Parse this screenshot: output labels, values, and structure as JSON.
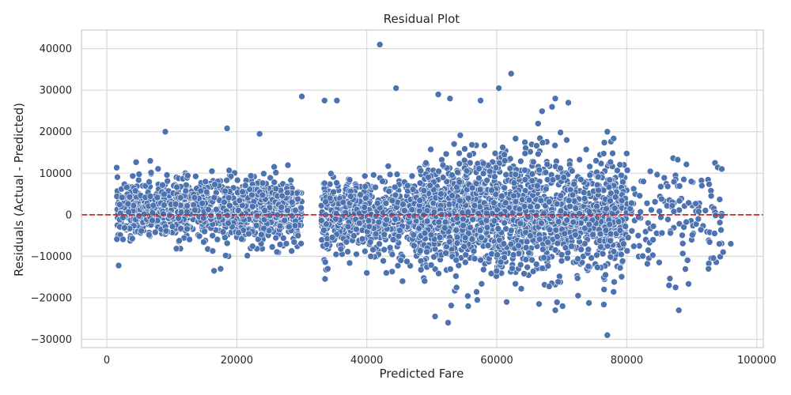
{
  "chart_data": {
    "type": "scatter",
    "title": "Residual Plot",
    "xlabel": "Predicted Fare",
    "ylabel": "Residuals (Actual - Predicted)",
    "xlim": [
      -3900,
      101000
    ],
    "ylim": [
      -32000,
      44500
    ],
    "x_ticks": [
      0,
      20000,
      40000,
      60000,
      80000,
      100000
    ],
    "y_ticks": [
      -30000,
      -20000,
      -10000,
      0,
      10000,
      20000,
      30000,
      40000
    ],
    "x_tick_labels": [
      "0",
      "20000",
      "40000",
      "60000",
      "80000",
      "100000"
    ],
    "y_tick_labels": [
      "−30000",
      "−20000",
      "−10000",
      "0",
      "10000",
      "20000",
      "30000",
      "40000"
    ],
    "grid": true,
    "reference_line": {
      "y": 0,
      "style": "dashed",
      "color": "#e41a1c"
    },
    "marker_color": "#4c72b0",
    "clusters": [
      {
        "x_range": [
          1500,
          30000
        ],
        "center_y": 1000,
        "spread_y": 3800,
        "count": 1100
      },
      {
        "x_range": [
          33000,
          50000
        ],
        "center_y": -500,
        "spread_y": 4500,
        "count": 700
      },
      {
        "x_range": [
          48000,
          80000
        ],
        "center_y": 0,
        "spread_y": 7000,
        "count": 1800
      },
      {
        "x_range": [
          80000,
          95000
        ],
        "center_y": 0,
        "spread_y": 6500,
        "count": 140
      }
    ],
    "notable_points": [
      {
        "x": 42000,
        "y": 41000
      },
      {
        "x": 44500,
        "y": 30500
      },
      {
        "x": 62200,
        "y": 34000
      },
      {
        "x": 60300,
        "y": 30500
      },
      {
        "x": 30000,
        "y": 28500
      },
      {
        "x": 33500,
        "y": 27500
      },
      {
        "x": 35400,
        "y": 27500
      },
      {
        "x": 51000,
        "y": 29000
      },
      {
        "x": 52800,
        "y": 28000
      },
      {
        "x": 57500,
        "y": 27500
      },
      {
        "x": 69000,
        "y": 28000
      },
      {
        "x": 71000,
        "y": 27000
      },
      {
        "x": 9000,
        "y": 20000
      },
      {
        "x": 18500,
        "y": 20800
      },
      {
        "x": 23500,
        "y": 19500
      },
      {
        "x": 77000,
        "y": 20000
      },
      {
        "x": 77000,
        "y": -29000
      },
      {
        "x": 52500,
        "y": -26000
      },
      {
        "x": 50500,
        "y": -24500
      },
      {
        "x": 88000,
        "y": -23000
      },
      {
        "x": 69000,
        "y": -23000
      },
      {
        "x": 57000,
        "y": -20500
      },
      {
        "x": 72500,
        "y": -19500
      },
      {
        "x": 66500,
        "y": -21500
      },
      {
        "x": 76500,
        "y": -18000
      },
      {
        "x": 16500,
        "y": -13500
      },
      {
        "x": 17500,
        "y": -13000
      },
      {
        "x": 86500,
        "y": -17000
      },
      {
        "x": 87500,
        "y": -17500
      },
      {
        "x": 96000,
        "y": -7000
      },
      {
        "x": 93500,
        "y": -4500
      },
      {
        "x": 91000,
        "y": -1000
      },
      {
        "x": 40000,
        "y": -14000
      },
      {
        "x": 43000,
        "y": -14000
      },
      {
        "x": 45500,
        "y": -16000
      },
      {
        "x": 34000,
        "y": -13000
      }
    ]
  }
}
